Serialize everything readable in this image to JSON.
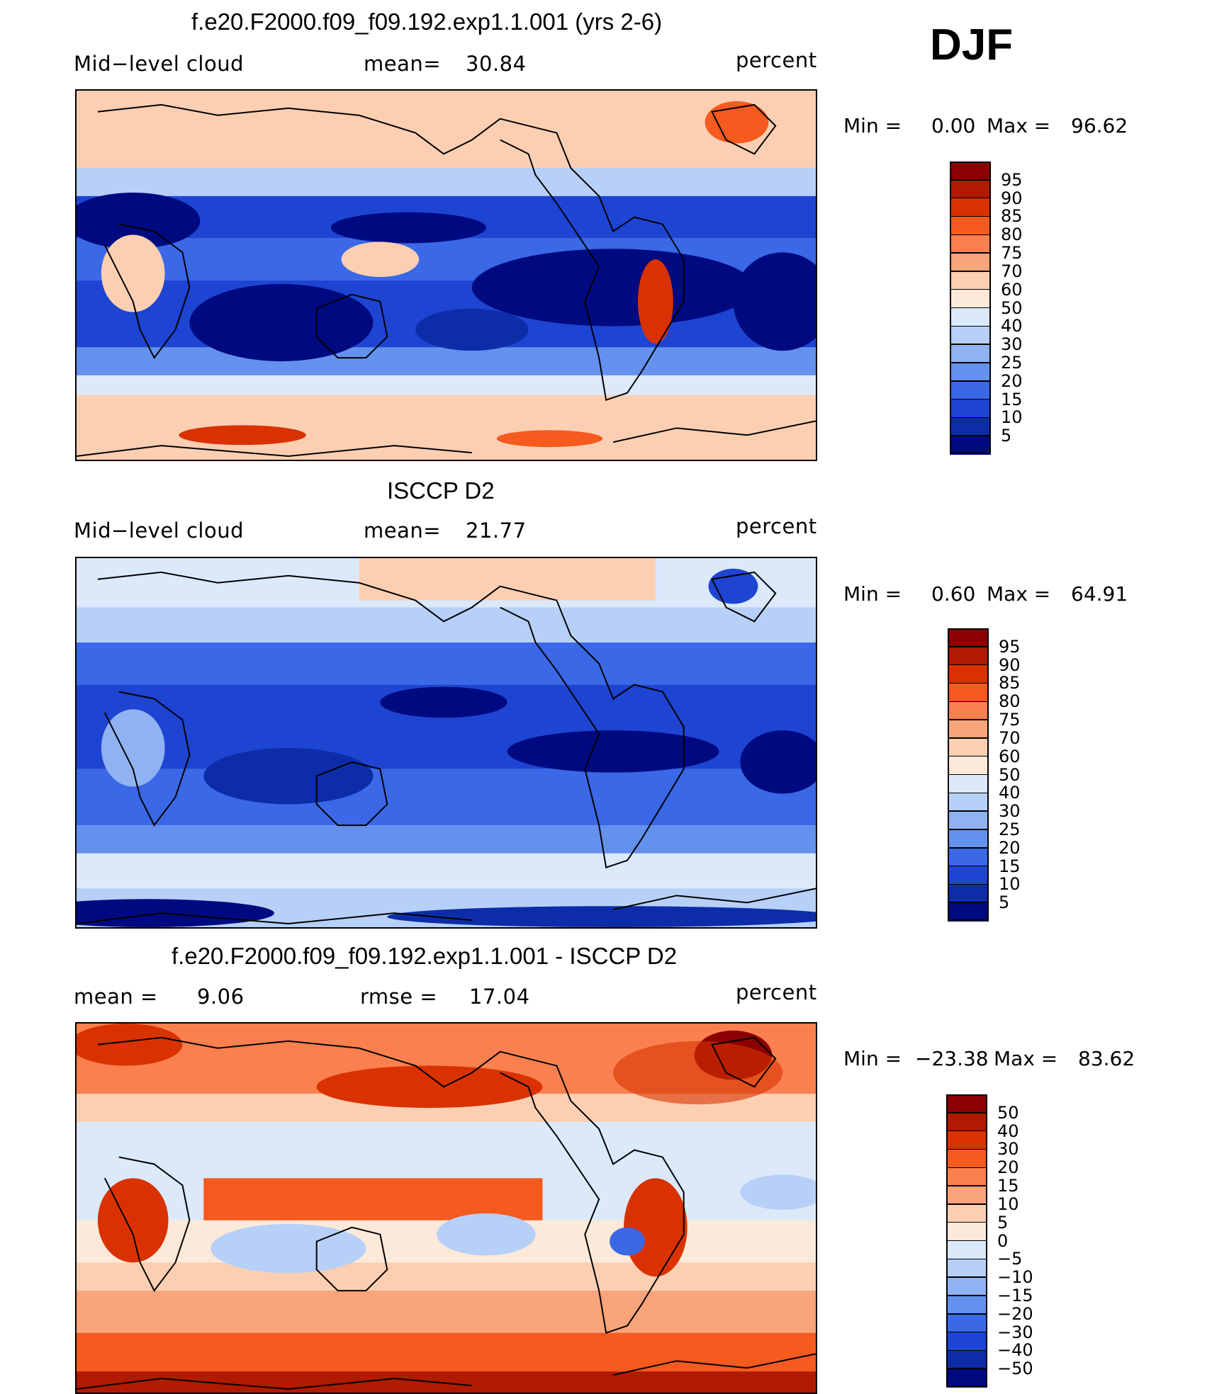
{
  "season": "DJF",
  "panels": [
    {
      "id": "model",
      "title": "f.e20.F2000.f09_f09.192.exp1.1.001 (yrs 2-6)",
      "left_label": "Mid−level cloud",
      "center_label": "mean=",
      "center_value": "30.84",
      "units": "percent",
      "min_label": "Min =",
      "min_value": "0.00",
      "max_label": "Max =",
      "max_value": "96.62",
      "colorbar_labels": [
        "95",
        "90",
        "85",
        "80",
        "75",
        "70",
        "60",
        "50",
        "40",
        "30",
        "25",
        "20",
        "15",
        "10",
        "5"
      ],
      "colorbar_colors": [
        "#8b0000",
        "#b01a00",
        "#d93200",
        "#f55a1e",
        "#fb8050",
        "#f9a47a",
        "#fccfb2",
        "#fde9d9",
        "#dbe9fb",
        "#b6d0f7",
        "#8fb3f2",
        "#6491ee",
        "#3a68e6",
        "#1e44d2",
        "#0d2da8",
        "#000a80"
      ]
    },
    {
      "id": "obs",
      "title": "ISCCP D2",
      "left_label": "Mid−level cloud",
      "center_label": "mean=",
      "center_value": "21.77",
      "units": "percent",
      "min_label": "Min =",
      "min_value": "0.60",
      "max_label": "Max =",
      "max_value": "64.91",
      "colorbar_labels": [
        "95",
        "90",
        "85",
        "80",
        "75",
        "70",
        "60",
        "50",
        "40",
        "30",
        "25",
        "20",
        "15",
        "10",
        "5"
      ],
      "colorbar_colors": [
        "#8b0000",
        "#b01a00",
        "#d93200",
        "#f55a1e",
        "#fb8050",
        "#f9a47a",
        "#fccfb2",
        "#fde9d9",
        "#dbe9fb",
        "#b6d0f7",
        "#8fb3f2",
        "#6491ee",
        "#3a68e6",
        "#1e44d2",
        "#0d2da8",
        "#000a80"
      ]
    },
    {
      "id": "diff",
      "title": "f.e20.F2000.f09_f09.192.exp1.1.001 - ISCCP D2",
      "left_label": "mean =",
      "left_value": "9.06",
      "center_label": "rmse =",
      "center_value": "17.04",
      "units": "percent",
      "min_label": "Min =",
      "min_value": "−23.38",
      "max_label": "Max =",
      "max_value": "83.62",
      "colorbar_labels": [
        "50",
        "40",
        "30",
        "20",
        "15",
        "10",
        "5",
        "0",
        "−5",
        "−10",
        "−15",
        "−20",
        "−30",
        "−40",
        "−50"
      ],
      "colorbar_colors": [
        "#8b0000",
        "#b01a00",
        "#d93200",
        "#f55a1e",
        "#fb8050",
        "#f9a47a",
        "#fccfb2",
        "#fde9d9",
        "#dbe9fb",
        "#b6d0f7",
        "#8fb3f2",
        "#6491ee",
        "#3a68e6",
        "#1e44d2",
        "#0d2da8",
        "#000a80"
      ]
    }
  ]
}
